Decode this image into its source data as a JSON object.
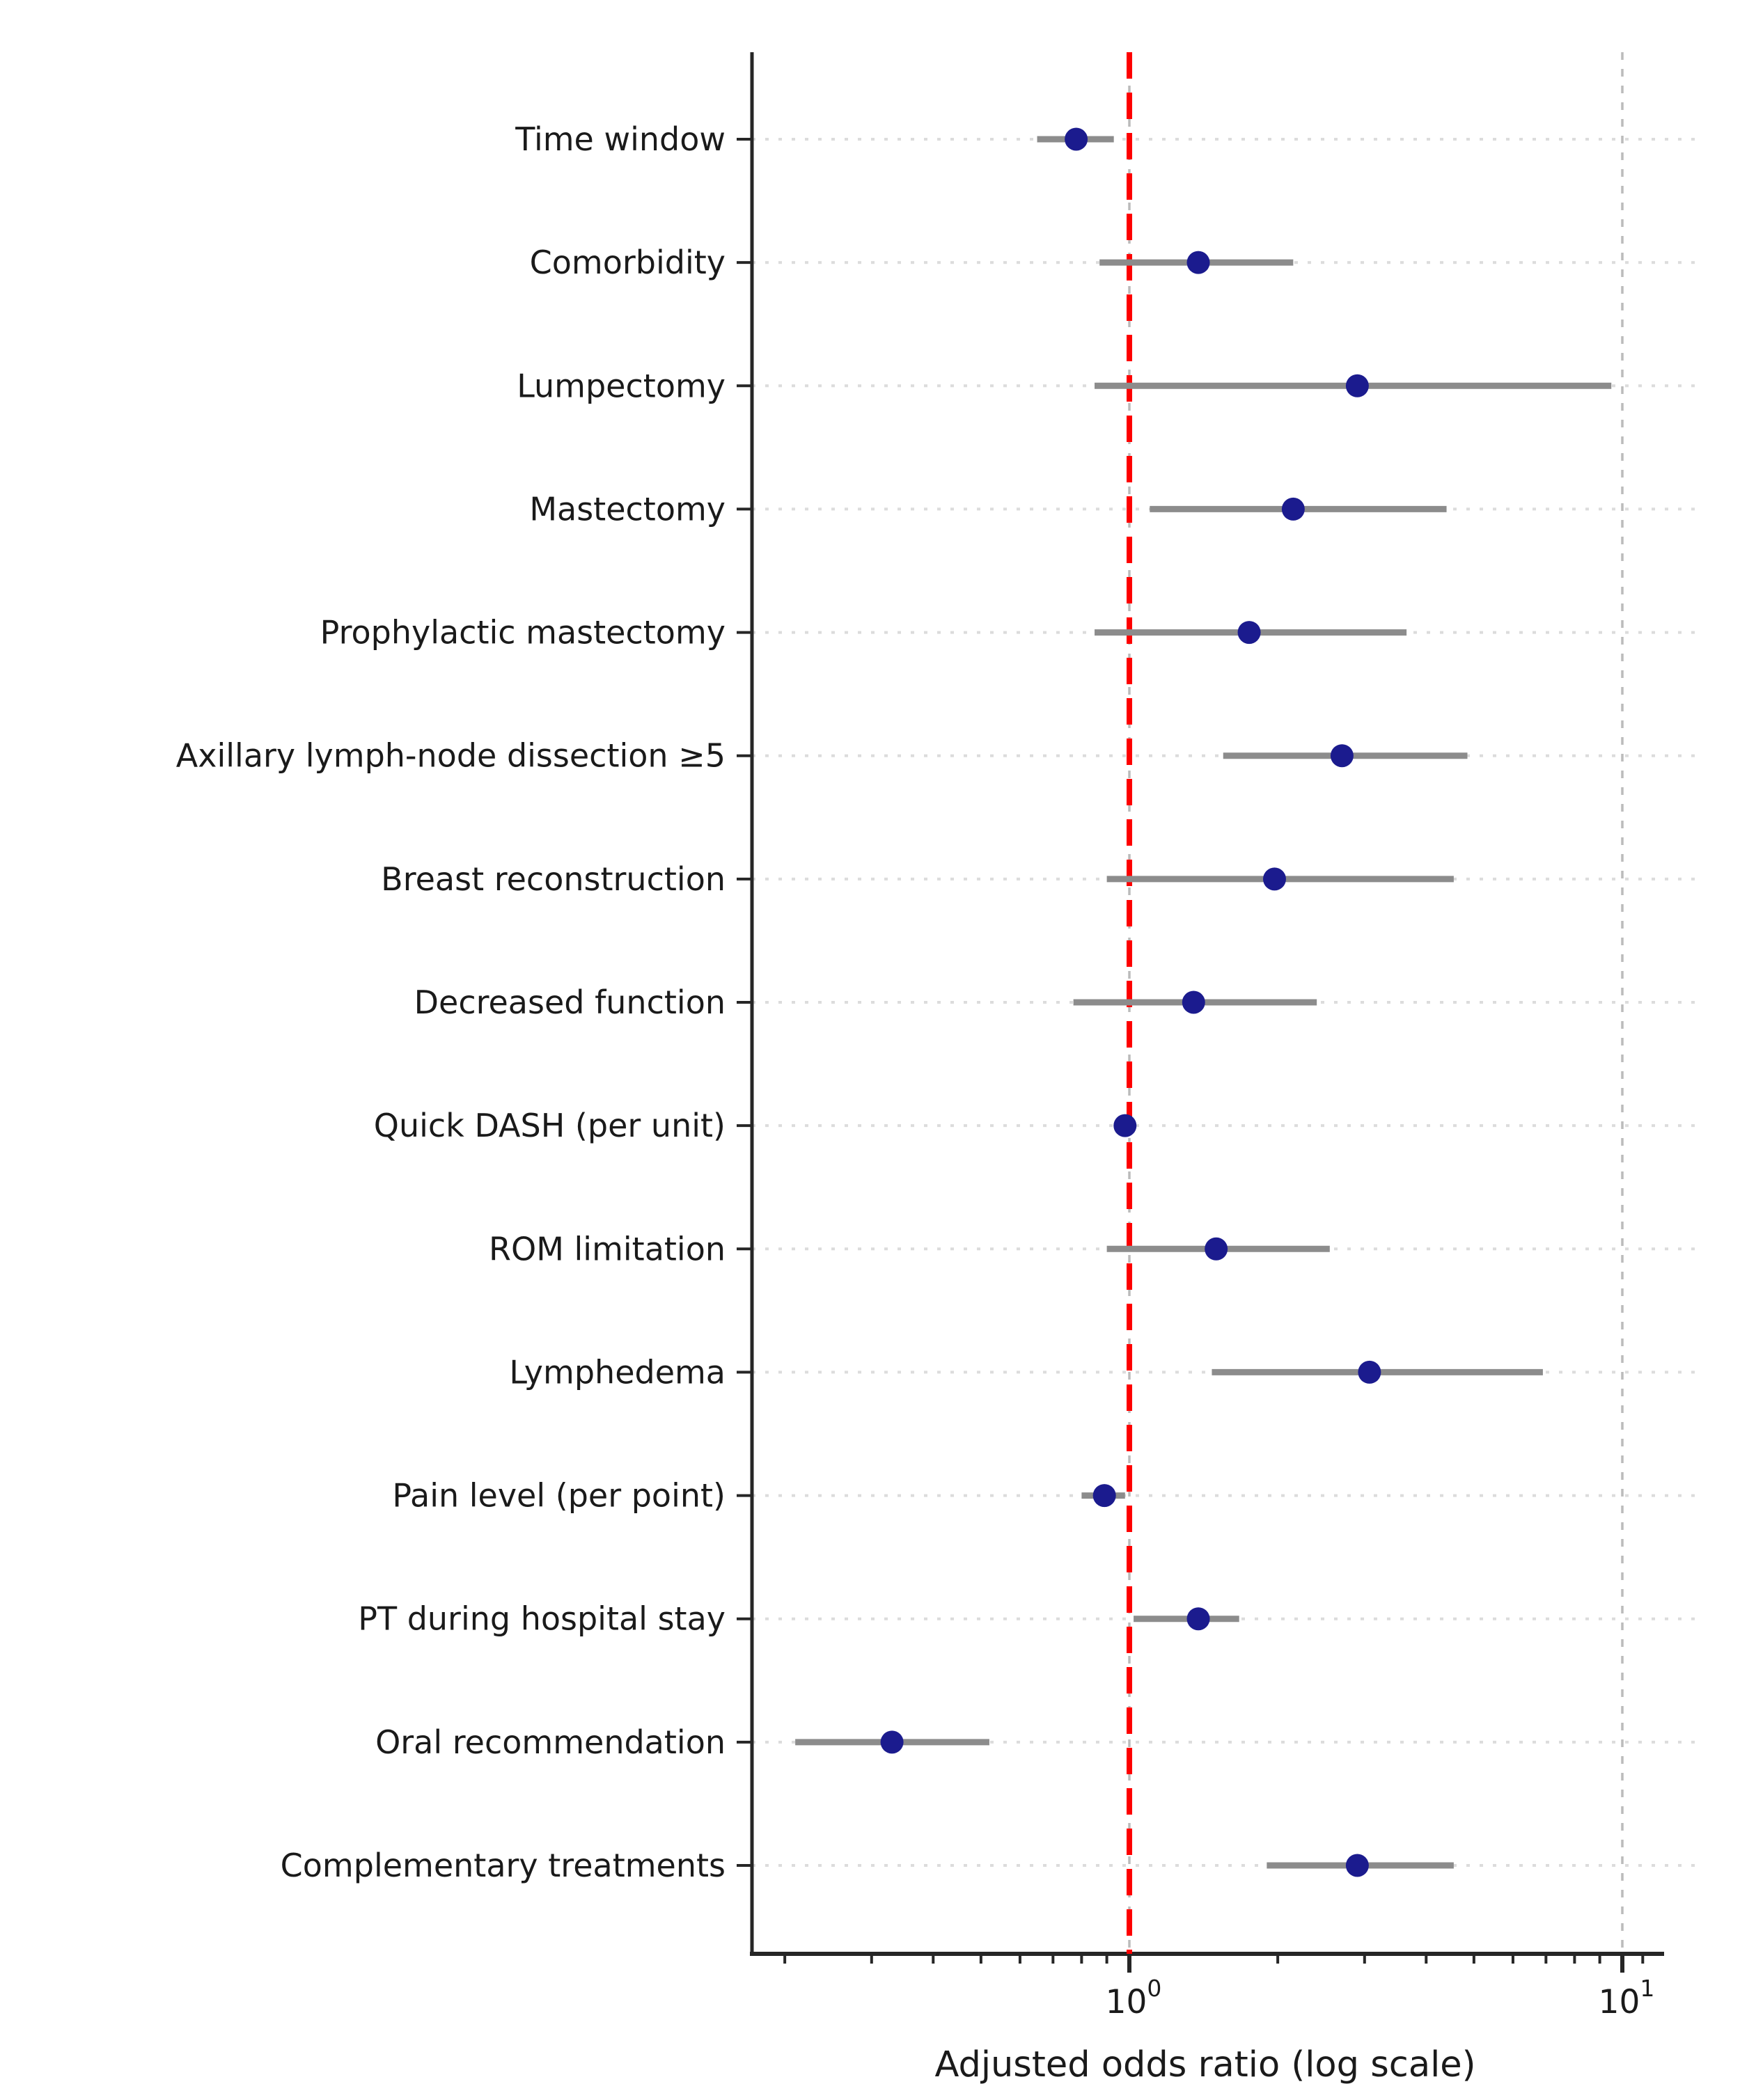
{
  "chart_data": {
    "type": "scatter",
    "subtype": "forest-plot",
    "title": "",
    "xlabel": "Adjusted odds ratio (log scale)",
    "ylabel": "",
    "x_scale": "log10",
    "xlim": [
      0.172,
      11.9
    ],
    "grid": true,
    "reference_line": {
      "value": 1.0,
      "style": "dashed",
      "color": "#fe0000"
    },
    "x_major_ticks": [
      {
        "value": 1,
        "base": "10",
        "exp": "0"
      },
      {
        "value": 10,
        "base": "10",
        "exp": "1"
      }
    ],
    "x_minor_ticks": [
      0.2,
      0.3,
      0.4,
      0.5,
      0.6,
      0.7,
      0.8,
      0.9,
      2,
      3,
      4,
      5,
      6,
      7,
      8,
      9,
      11
    ],
    "rows": [
      {
        "label": "Time window",
        "or": 0.78,
        "ci_low": 0.65,
        "ci_high": 0.93
      },
      {
        "label": "Comorbidity",
        "or": 1.38,
        "ci_low": 0.87,
        "ci_high": 2.15
      },
      {
        "label": "Lumpectomy",
        "or": 2.9,
        "ci_low": 0.85,
        "ci_high": 9.5
      },
      {
        "label": "Mastectomy",
        "or": 2.15,
        "ci_low": 1.1,
        "ci_high": 4.4
      },
      {
        "label": "Prophylactic mastectomy",
        "or": 1.75,
        "ci_low": 0.85,
        "ci_high": 3.65
      },
      {
        "label": "Axillary lymph-node dissection ≥5",
        "or": 2.7,
        "ci_low": 1.55,
        "ci_high": 4.85
      },
      {
        "label": "Breast reconstruction",
        "or": 1.97,
        "ci_low": 0.9,
        "ci_high": 4.55
      },
      {
        "label": "Decreased function",
        "or": 1.35,
        "ci_low": 0.77,
        "ci_high": 2.4
      },
      {
        "label": "Quick DASH (per unit)",
        "or": 0.98,
        "ci_low": 0.96,
        "ci_high": 1.0
      },
      {
        "label": "ROM limitation",
        "or": 1.5,
        "ci_low": 0.9,
        "ci_high": 2.55
      },
      {
        "label": "Lymphedema",
        "or": 3.07,
        "ci_low": 1.47,
        "ci_high": 6.9
      },
      {
        "label": "Pain level (per point)",
        "or": 0.89,
        "ci_low": 0.8,
        "ci_high": 0.98
      },
      {
        "label": "PT during hospital stay",
        "or": 1.38,
        "ci_low": 1.02,
        "ci_high": 1.67
      },
      {
        "label": "Oral recommendation",
        "or": 0.33,
        "ci_low": 0.21,
        "ci_high": 0.52
      },
      {
        "label": "Complementary treatments",
        "or": 2.9,
        "ci_low": 1.9,
        "ci_high": 4.55
      }
    ],
    "legend": null,
    "colors": {
      "point": "#1b1b8e",
      "ci": "#8c8c8c",
      "reference": "#fe0000",
      "grid_dotted": "#dcdcdc",
      "grid_dashed": "#bbbbbb",
      "axis": "#262626",
      "text": "#1a1a1a"
    }
  }
}
